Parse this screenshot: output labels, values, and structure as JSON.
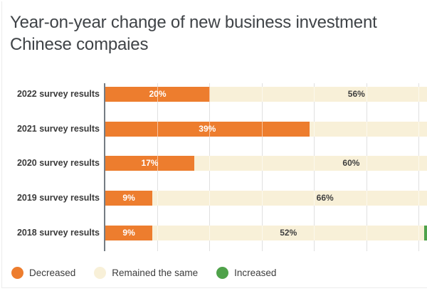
{
  "title": {
    "line1": "Year-on-year change of new business investment",
    "line2": "Chinese compaies"
  },
  "chart_data": {
    "type": "bar",
    "orientation": "horizontal",
    "stacked": true,
    "title": "Year-on-year change of new business investment Chinese compaies",
    "categories": [
      "2022 survey results",
      "2021 survey results",
      "2020 survey results",
      "2019 survey results",
      "2018 survey results"
    ],
    "series": [
      {
        "name": "Decreased",
        "color": "#ED7D2E",
        "label_color": "#FFFFFF",
        "values": [
          20,
          39,
          17,
          9,
          9
        ],
        "value_labels": [
          "20%",
          "39%",
          "17%",
          "9%",
          "9%"
        ]
      },
      {
        "name": "Remained the same",
        "color": "#F8F0D8",
        "label_color": "#3f3f3f",
        "values": [
          56,
          null,
          60,
          66,
          52
        ],
        "value_labels": [
          "56%",
          "",
          "60%",
          "66%",
          "52%"
        ]
      },
      {
        "name": "Increased",
        "color": "#4FA24A",
        "label_color": "#FFFFFF",
        "values": [
          null,
          null,
          null,
          null,
          null
        ],
        "value_labels": [
          "",
          "",
          "",
          "",
          ""
        ],
        "partially_visible_for": [
          "2018 survey results"
        ]
      }
    ],
    "x_axis": {
      "min": 0,
      "gridline_step_pct": 10,
      "visible_max_pct": 62,
      "tick_labels_visible": false
    },
    "legend": {
      "position": "bottom",
      "items": [
        "Decreased",
        "Remained the same",
        "Increased"
      ]
    },
    "grid": true
  },
  "colors": {
    "axis_line": "#747c84",
    "gridline": "#e0e0e0",
    "background": "#ffffff",
    "category_label": "#3b3b3b",
    "title_text": "#3f4347"
  }
}
